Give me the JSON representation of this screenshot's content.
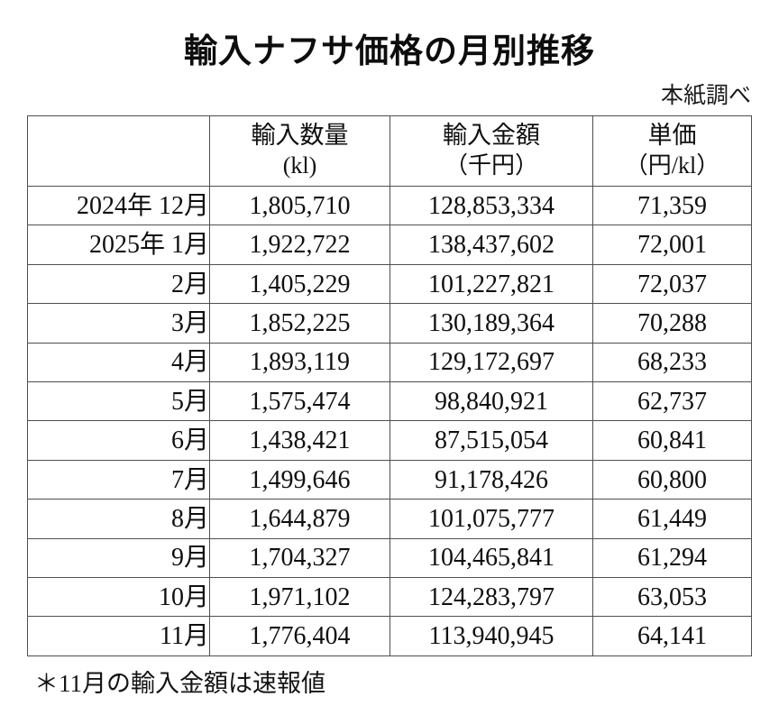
{
  "title": "輸入ナフサ価格の月別推移",
  "source_note": "本紙調べ",
  "table": {
    "columns": [
      {
        "label": "",
        "unit": ""
      },
      {
        "label": "輸入数量",
        "unit": "(kl)"
      },
      {
        "label": "輸入金額",
        "unit": "（千円）"
      },
      {
        "label": "単価",
        "unit": "（円/kl）"
      }
    ],
    "rows": [
      {
        "month": "2024年 12月",
        "qty": "1,805,710",
        "amount": "128,853,334",
        "price": "71,359"
      },
      {
        "month": "2025年 1月",
        "qty": "1,922,722",
        "amount": "138,437,602",
        "price": "72,001"
      },
      {
        "month": "2月",
        "qty": "1,405,229",
        "amount": "101,227,821",
        "price": "72,037"
      },
      {
        "month": "3月",
        "qty": "1,852,225",
        "amount": "130,189,364",
        "price": "70,288"
      },
      {
        "month": "4月",
        "qty": "1,893,119",
        "amount": "129,172,697",
        "price": "68,233"
      },
      {
        "month": "5月",
        "qty": "1,575,474",
        "amount": "98,840,921",
        "price": "62,737"
      },
      {
        "month": "6月",
        "qty": "1,438,421",
        "amount": "87,515,054",
        "price": "60,841"
      },
      {
        "month": "7月",
        "qty": "1,499,646",
        "amount": "91,178,426",
        "price": "60,800"
      },
      {
        "month": "8月",
        "qty": "1,644,879",
        "amount": "101,075,777",
        "price": "61,449"
      },
      {
        "month": "9月",
        "qty": "1,704,327",
        "amount": "104,465,841",
        "price": "61,294"
      },
      {
        "month": "10月",
        "qty": "1,971,102",
        "amount": "124,283,797",
        "price": "63,053"
      },
      {
        "month": "11月",
        "qty": "1,776,404",
        "amount": "113,940,945",
        "price": "64,141"
      }
    ]
  },
  "footnote": "＊11月の輸入金額は速報値"
}
